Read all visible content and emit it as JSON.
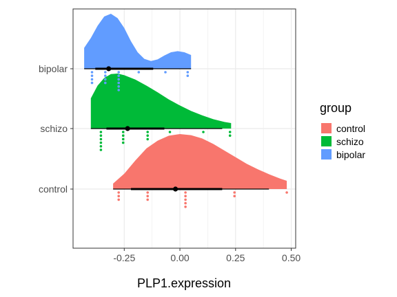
{
  "chart_data": {
    "type": "raincloud",
    "xlabel": "PLP1.expression",
    "ylabel": "",
    "xlim": [
      -0.48,
      0.52
    ],
    "x_ticks": [
      -0.25,
      0.0,
      0.25,
      0.5
    ],
    "x_tick_labels": [
      "-0.25",
      "0.00",
      "0.25",
      "0.50"
    ],
    "categories": [
      "control",
      "schizo",
      "bipolar"
    ],
    "grid": true,
    "legend": {
      "title": "group",
      "position": "right",
      "entries": [
        "control",
        "schizo",
        "bipolar"
      ]
    },
    "series": [
      {
        "name": "control",
        "color": "#F8766D",
        "points": [
          -0.275,
          -0.275,
          -0.275,
          -0.145,
          -0.145,
          -0.145,
          0.025,
          0.025,
          0.025,
          0.025,
          0.025,
          0.245,
          0.245,
          0.48
        ],
        "summary": {
          "center": -0.02,
          "thick": [
            -0.22,
            0.19
          ],
          "thin": [
            -0.3,
            0.4
          ]
        },
        "density": [
          [
            -0.3,
            0.1
          ],
          [
            -0.25,
            0.28
          ],
          [
            -0.2,
            0.52
          ],
          [
            -0.15,
            0.74
          ],
          [
            -0.1,
            0.88
          ],
          [
            -0.05,
            0.97
          ],
          [
            0.0,
            1.0
          ],
          [
            0.05,
            0.98
          ],
          [
            0.1,
            0.92
          ],
          [
            0.15,
            0.82
          ],
          [
            0.2,
            0.7
          ],
          [
            0.25,
            0.58
          ],
          [
            0.3,
            0.46
          ],
          [
            0.35,
            0.36
          ],
          [
            0.4,
            0.27
          ],
          [
            0.45,
            0.19
          ],
          [
            0.48,
            0.15
          ]
        ]
      },
      {
        "name": "schizo",
        "color": "#00BA38",
        "points": [
          -0.355,
          -0.355,
          -0.355,
          -0.355,
          -0.355,
          -0.355,
          -0.255,
          -0.255,
          -0.255,
          -0.255,
          -0.145,
          -0.145,
          -0.145,
          -0.045,
          0.105,
          0.225,
          0.225
        ],
        "summary": {
          "center": -0.235,
          "thick": [
            -0.33,
            -0.07
          ],
          "thin": [
            -0.4,
            0.19
          ]
        },
        "density": [
          [
            -0.4,
            0.55
          ],
          [
            -0.37,
            0.78
          ],
          [
            -0.34,
            0.92
          ],
          [
            -0.31,
            0.99
          ],
          [
            -0.28,
            1.0
          ],
          [
            -0.25,
            0.97
          ],
          [
            -0.2,
            0.89
          ],
          [
            -0.15,
            0.78
          ],
          [
            -0.1,
            0.66
          ],
          [
            -0.05,
            0.53
          ],
          [
            0.0,
            0.42
          ],
          [
            0.05,
            0.32
          ],
          [
            0.1,
            0.24
          ],
          [
            0.15,
            0.17
          ],
          [
            0.2,
            0.12
          ],
          [
            0.23,
            0.1
          ]
        ]
      },
      {
        "name": "bipolar",
        "color": "#619CFF",
        "points": [
          -0.395,
          -0.395,
          -0.395,
          -0.395,
          -0.335,
          -0.335,
          -0.335,
          -0.335,
          -0.275,
          -0.275,
          -0.275,
          -0.275,
          -0.275,
          -0.275,
          -0.185,
          -0.065,
          0.035,
          0.035
        ],
        "summary": {
          "center": -0.32,
          "thick": [
            -0.38,
            -0.12
          ],
          "thin": [
            -0.43,
            0.05
          ]
        },
        "density": [
          [
            -0.43,
            0.38
          ],
          [
            -0.4,
            0.56
          ],
          [
            -0.37,
            0.78
          ],
          [
            -0.34,
            0.95
          ],
          [
            -0.31,
            1.0
          ],
          [
            -0.28,
            0.92
          ],
          [
            -0.25,
            0.74
          ],
          [
            -0.22,
            0.5
          ],
          [
            -0.19,
            0.3
          ],
          [
            -0.16,
            0.18
          ],
          [
            -0.13,
            0.14
          ],
          [
            -0.1,
            0.17
          ],
          [
            -0.07,
            0.24
          ],
          [
            -0.04,
            0.3
          ],
          [
            -0.01,
            0.32
          ],
          [
            0.02,
            0.3
          ],
          [
            0.05,
            0.25
          ]
        ]
      }
    ]
  }
}
